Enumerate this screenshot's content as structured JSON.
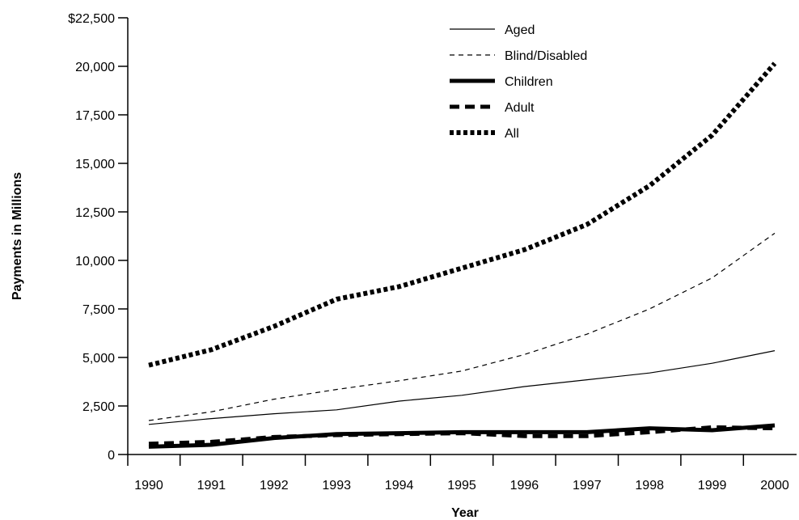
{
  "chart_data": {
    "type": "line",
    "title": "",
    "xlabel": "Year",
    "ylabel": "Payments in Millions",
    "x": [
      1990,
      1991,
      1992,
      1993,
      1994,
      1995,
      1996,
      1997,
      1998,
      1999,
      2000
    ],
    "x_tick_labels": [
      "1990",
      "1991",
      "1992",
      "1993",
      "1994",
      "1995",
      "1996",
      "1997",
      "1998",
      "1999",
      "2000"
    ],
    "y_ticks": [
      0,
      2500,
      5000,
      7500,
      10000,
      12500,
      15000,
      17500,
      20000,
      22500
    ],
    "y_tick_labels": [
      "0",
      "2,500",
      "5,000",
      "7,500",
      "10,000",
      "12,500",
      "15,000",
      "17,500",
      "20,000",
      "$22,500"
    ],
    "ylim": [
      0,
      22500
    ],
    "grid": false,
    "legend_position": "top-right",
    "series": [
      {
        "name": "Aged",
        "style": "thin-solid",
        "color": "#000000",
        "values": [
          1550,
          1850,
          2100,
          2300,
          2750,
          3050,
          3500,
          3850,
          4200,
          4700,
          5350
        ]
      },
      {
        "name": "Blind/Disabled",
        "style": "thin-dashed",
        "color": "#000000",
        "values": [
          1750,
          2200,
          2850,
          3350,
          3800,
          4300,
          5150,
          6200,
          7500,
          9100,
          11400
        ]
      },
      {
        "name": "Children",
        "style": "thick-solid",
        "color": "#000000",
        "values": [
          400,
          500,
          850,
          1050,
          1100,
          1150,
          1150,
          1150,
          1350,
          1250,
          1500
        ]
      },
      {
        "name": "Adult",
        "style": "thick-dashed",
        "color": "#000000",
        "values": [
          550,
          650,
          900,
          1000,
          1050,
          1100,
          950,
          950,
          1150,
          1400,
          1350
        ]
      },
      {
        "name": "All",
        "style": "thick-dotted",
        "color": "#000000",
        "values": [
          4600,
          5400,
          6600,
          8000,
          8650,
          9600,
          10550,
          11850,
          13850,
          16450,
          20150
        ]
      }
    ]
  }
}
